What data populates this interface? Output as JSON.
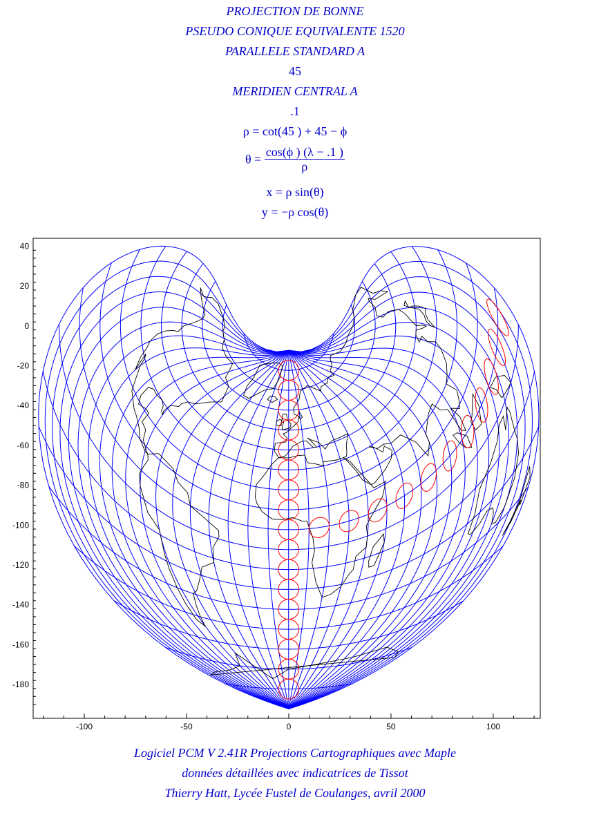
{
  "header": {
    "lines": [
      "PROJECTION DE BONNE",
      "PSEUDO CONIQUE EQUIVALENTE 1520",
      "PARALLELE STANDARD A",
      "45",
      "MERIDIEN CENTRAL A",
      ".1"
    ],
    "formula_rho": "ρ = cot(45 ) + 45 − ϕ",
    "formula_theta_lhs": "θ =",
    "formula_theta_num": "cos(ϕ ) (λ − .1 )",
    "formula_theta_den": "ρ",
    "formula_x": "x = ρ sin(θ)",
    "formula_y": "y = −ρ cos(θ)"
  },
  "colors": {
    "graticule": "#0000ff",
    "tissot": "#ff0000",
    "coast": "#000000",
    "text": "#0000cc"
  },
  "chart_data": {
    "type": "map-projection",
    "projection": "Bonne",
    "standard_parallel": 45,
    "central_meridian": 0.1,
    "graticule_step_deg": 10,
    "xlim": [
      -125,
      123
    ],
    "ylim": [
      -197,
      44
    ],
    "x_ticks": [
      -100,
      -50,
      0,
      50,
      100
    ],
    "x_tick_labels": [
      "-100",
      "-50",
      "0",
      "50",
      "100"
    ],
    "y_ticks": [
      40,
      20,
      0,
      -20,
      -40,
      -60,
      -80,
      -100,
      -120,
      -140,
      -160,
      -180
    ],
    "y_tick_labels": [
      "40",
      "20",
      "0",
      "-20",
      "-40",
      "-60",
      "-80",
      "-100",
      "-120",
      "-140",
      "-160",
      "-180"
    ],
    "tissot_indicatrices": [
      {
        "lon": 0,
        "lat": 80
      },
      {
        "lon": 0,
        "lat": 70
      },
      {
        "lon": 0,
        "lat": 60
      },
      {
        "lon": 0,
        "lat": 50
      },
      {
        "lon": 0,
        "lat": 40
      },
      {
        "lon": 0,
        "lat": 30
      },
      {
        "lon": 0,
        "lat": 20
      },
      {
        "lon": 0,
        "lat": 10
      },
      {
        "lon": 0,
        "lat": 0
      },
      {
        "lon": 0,
        "lat": -10
      },
      {
        "lon": 0,
        "lat": -20
      },
      {
        "lon": 0,
        "lat": -30
      },
      {
        "lon": 0,
        "lat": -40
      },
      {
        "lon": 0,
        "lat": -50
      },
      {
        "lon": 0,
        "lat": -60
      },
      {
        "lon": 0,
        "lat": -70
      },
      {
        "lon": 0,
        "lat": -80
      },
      {
        "lon": 15,
        "lat": 0
      },
      {
        "lon": 30,
        "lat": 0
      },
      {
        "lon": 45,
        "lat": 0
      },
      {
        "lon": 60,
        "lat": 0
      },
      {
        "lon": 75,
        "lat": 0
      },
      {
        "lon": 90,
        "lat": 0
      },
      {
        "lon": 105,
        "lat": 0
      },
      {
        "lon": 120,
        "lat": 0
      },
      {
        "lon": 135,
        "lat": 0
      },
      {
        "lon": 150,
        "lat": 0
      },
      {
        "lon": 165,
        "lat": 0
      }
    ]
  },
  "footer": {
    "line1": "Logiciel PCM V 2.41R Projections Cartographiques avec Maple",
    "line2": "données détaillées avec indicatrices de Tissot",
    "line3": "Thierry Hatt, Lycée Fustel de Coulanges, avril 2000"
  }
}
